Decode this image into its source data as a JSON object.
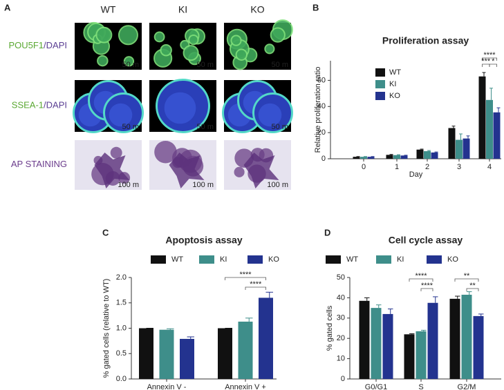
{
  "images": {
    "panel_label": "A",
    "columns": [
      "WT",
      "KI",
      "KO"
    ],
    "rows": [
      {
        "label": [
          "POU5F1",
          "/DAPI"
        ],
        "scale": "50  m"
      },
      {
        "label": [
          "SSEA-1",
          "/DAPI"
        ],
        "scale": "50  m"
      },
      {
        "label": [
          "AP STAINING"
        ],
        "scale": "100  m"
      }
    ]
  },
  "chart_data": [
    {
      "type": "bar",
      "panel_label": "B",
      "title": "Proliferation assay",
      "x_label": "Day",
      "y_label": "Relative proliferation ratio",
      "categories": [
        "0",
        "1",
        "2",
        "3",
        "4"
      ],
      "series": [
        {
          "name": "WT",
          "color": "#111111",
          "values": [
            1.5,
            3,
            7,
            23.5,
            63
          ],
          "errors": [
            0.2,
            0.3,
            0.4,
            1.5,
            3
          ]
        },
        {
          "name": "KI",
          "color": "#3e8e8a",
          "values": [
            1.5,
            2.8,
            5.8,
            14.5,
            45
          ],
          "errors": [
            0.2,
            0.3,
            0.5,
            4.5,
            9
          ]
        },
        {
          "name": "KO",
          "color": "#23338f",
          "values": [
            1.5,
            2.5,
            4.8,
            15.5,
            35.5
          ],
          "errors": [
            0.2,
            0.2,
            0.4,
            2,
            3.5
          ]
        }
      ],
      "ylim": [
        0,
        75
      ],
      "yticks": [
        0,
        20,
        40,
        60
      ],
      "significance": [
        {
          "label": "****",
          "category": 4,
          "pair": [
            0,
            2
          ]
        },
        {
          "label": "***",
          "category": 4,
          "pair": [
            0,
            1
          ]
        },
        {
          "label": "*",
          "category": 4,
          "pair": [
            1,
            2
          ]
        }
      ]
    },
    {
      "type": "bar",
      "panel_label": "C",
      "title": "Apoptosis assay",
      "y_label": "% gated cells (relative to WT)",
      "categories": [
        "Annexin V -",
        "Annexin V +"
      ],
      "series": [
        {
          "name": "WT",
          "color": "#111111",
          "values": [
            1.0,
            1.0
          ],
          "errors": [
            0,
            0
          ]
        },
        {
          "name": "KI",
          "color": "#3e8e8a",
          "values": [
            0.97,
            1.13
          ],
          "errors": [
            0.02,
            0.07
          ]
        },
        {
          "name": "KO",
          "color": "#23338f",
          "values": [
            0.79,
            1.6
          ],
          "errors": [
            0.04,
            0.11
          ]
        }
      ],
      "ylim": [
        0,
        2.0
      ],
      "yticks": [
        {
          "value": 0,
          "label": "0.0"
        },
        0.5,
        {
          "value": 1,
          "label": "1.0"
        },
        1.5,
        {
          "value": 2,
          "label": "2.0"
        }
      ],
      "significance": [
        {
          "label": "****",
          "category": 1,
          "pair": [
            0,
            2
          ]
        },
        {
          "label": "****",
          "category": 1,
          "pair": [
            1,
            2
          ]
        }
      ]
    },
    {
      "type": "bar",
      "panel_label": "D",
      "title": "Cell cycle assay",
      "y_label": "% gated cells",
      "categories": [
        "G0/G1",
        "S",
        "G2/M"
      ],
      "series": [
        {
          "name": "WT",
          "color": "#111111",
          "values": [
            38.5,
            22,
            39.5
          ],
          "errors": [
            1.5,
            0.3,
            1.3
          ]
        },
        {
          "name": "KI",
          "color": "#3e8e8a",
          "values": [
            35,
            23.5,
            41.5
          ],
          "errors": [
            1.5,
            0.5,
            1.5
          ]
        },
        {
          "name": "KO",
          "color": "#23338f",
          "values": [
            32,
            37.5,
            31
          ],
          "errors": [
            2.5,
            3,
            1
          ]
        }
      ],
      "ylim": [
        0,
        50
      ],
      "yticks": [
        0,
        10,
        20,
        30,
        40,
        50
      ],
      "significance": [
        {
          "label": "****",
          "category": 1,
          "pair": [
            0,
            2
          ]
        },
        {
          "label": "****",
          "category": 1,
          "pair": [
            1,
            2
          ]
        },
        {
          "label": "**",
          "category": 2,
          "pair": [
            0,
            2
          ]
        },
        {
          "label": "**",
          "category": 2,
          "pair": [
            1,
            2
          ]
        }
      ]
    }
  ]
}
